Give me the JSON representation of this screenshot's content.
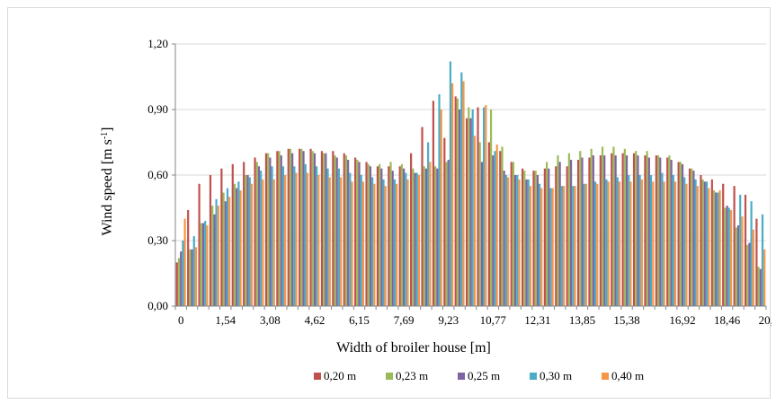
{
  "chart_data": {
    "type": "bar",
    "title": "",
    "xlabel": "Width of broiler house [m]",
    "ylabel": "Wind speed [m s",
    "ylabel_sup": "-1",
    "ylabel_close": "]",
    "ylim": [
      0,
      1.2
    ],
    "yticks": [
      "0,00",
      "0,30",
      "0,60",
      "0,90",
      "1,20"
    ],
    "ytick_values": [
      0,
      0.3,
      0.6,
      0.9,
      1.2
    ],
    "xticks": [
      "0",
      "1,54",
      "3,08",
      "4,62",
      "6,15",
      "7,69",
      "9,23",
      "10,77",
      "12,31",
      "13,85",
      "15,38",
      "16,92",
      "18,46",
      "20,00"
    ],
    "xtick_positions": [
      0,
      1.54,
      3.08,
      4.62,
      6.15,
      7.69,
      9.23,
      10.77,
      12.31,
      13.85,
      15.38,
      16.92,
      18.46,
      20.0
    ],
    "grid": "horizontal",
    "legend_position": "bottom",
    "x": [
      0,
      0.38,
      0.77,
      1.15,
      1.54,
      1.92,
      2.31,
      2.69,
      3.08,
      3.46,
      3.85,
      4.23,
      4.62,
      5.0,
      5.38,
      5.77,
      6.15,
      6.54,
      6.92,
      7.31,
      7.69,
      8.08,
      8.46,
      8.85,
      9.23,
      9.62,
      10.0,
      10.38,
      10.77,
      11.15,
      11.54,
      11.92,
      12.31,
      12.69,
      13.08,
      13.46,
      13.85,
      14.23,
      14.62,
      15.0,
      15.38,
      15.77,
      16.15,
      16.54,
      16.92,
      17.31,
      17.69,
      18.08,
      18.46,
      18.85,
      19.23,
      19.62,
      20.0
    ],
    "series": [
      {
        "name": "0,20 m",
        "color": "#c0504d",
        "values": [
          0.2,
          0.44,
          0.56,
          0.6,
          0.63,
          0.65,
          0.66,
          0.68,
          0.7,
          0.71,
          0.72,
          0.72,
          0.72,
          0.71,
          0.71,
          0.7,
          0.68,
          0.66,
          0.64,
          0.64,
          0.64,
          0.7,
          0.82,
          0.94,
          0.77,
          0.96,
          0.86,
          0.91,
          0.75,
          0.71,
          0.66,
          0.63,
          0.62,
          0.63,
          0.64,
          0.64,
          0.67,
          0.68,
          0.69,
          0.7,
          0.7,
          0.7,
          0.69,
          0.69,
          0.68,
          0.66,
          0.63,
          0.6,
          0.58,
          0.56,
          0.55,
          0.51,
          0.4
        ]
      },
      {
        "name": "0,23 m",
        "color": "#9bbb59",
        "values": [
          0.22,
          0.26,
          0.38,
          0.46,
          0.52,
          0.56,
          0.6,
          0.66,
          0.7,
          0.71,
          0.72,
          0.72,
          0.71,
          0.7,
          0.69,
          0.69,
          0.67,
          0.65,
          0.65,
          0.66,
          0.65,
          0.63,
          0.64,
          0.64,
          0.66,
          0.95,
          0.91,
          0.75,
          0.9,
          0.73,
          0.66,
          0.62,
          0.62,
          0.66,
          0.69,
          0.7,
          0.71,
          0.72,
          0.73,
          0.73,
          0.72,
          0.71,
          0.71,
          0.69,
          0.69,
          0.66,
          0.63,
          0.58,
          0.53,
          0.45,
          0.36,
          0.28,
          0.18
        ]
      },
      {
        "name": "0,25 m",
        "color": "#8064a2",
        "values": [
          0.25,
          0.26,
          0.38,
          0.42,
          0.48,
          0.54,
          0.6,
          0.64,
          0.68,
          0.69,
          0.7,
          0.71,
          0.7,
          0.7,
          0.68,
          0.67,
          0.66,
          0.64,
          0.63,
          0.62,
          0.63,
          0.61,
          0.63,
          0.63,
          0.67,
          0.9,
          0.86,
          0.66,
          0.69,
          0.62,
          0.6,
          0.58,
          0.6,
          0.63,
          0.66,
          0.67,
          0.68,
          0.69,
          0.69,
          0.69,
          0.69,
          0.69,
          0.68,
          0.68,
          0.67,
          0.65,
          0.62,
          0.57,
          0.52,
          0.46,
          0.37,
          0.29,
          0.17
        ]
      },
      {
        "name": "0,30 m",
        "color": "#4bacc6",
        "values": [
          0.3,
          0.32,
          0.39,
          0.49,
          0.54,
          0.57,
          0.59,
          0.62,
          0.64,
          0.64,
          0.64,
          0.65,
          0.64,
          0.63,
          0.63,
          0.61,
          0.6,
          0.59,
          0.58,
          0.58,
          0.61,
          0.61,
          0.75,
          0.97,
          1.12,
          1.07,
          0.9,
          0.91,
          0.71,
          0.6,
          0.6,
          0.58,
          0.56,
          0.54,
          0.55,
          0.55,
          0.56,
          0.57,
          0.58,
          0.59,
          0.6,
          0.6,
          0.6,
          0.61,
          0.6,
          0.59,
          0.58,
          0.57,
          0.52,
          0.45,
          0.51,
          0.48,
          0.42
        ]
      },
      {
        "name": "0,40 m",
        "color": "#f79646",
        "values": [
          0.4,
          0.27,
          0.37,
          0.46,
          0.5,
          0.53,
          0.56,
          0.58,
          0.58,
          0.6,
          0.61,
          0.61,
          0.6,
          0.59,
          0.59,
          0.57,
          0.57,
          0.56,
          0.55,
          0.56,
          0.58,
          0.6,
          0.66,
          0.9,
          1.02,
          1.03,
          0.78,
          0.92,
          0.74,
          0.59,
          0.58,
          0.55,
          0.54,
          0.54,
          0.55,
          0.55,
          0.56,
          0.56,
          0.57,
          0.57,
          0.57,
          0.58,
          0.57,
          0.57,
          0.57,
          0.56,
          0.55,
          0.54,
          0.53,
          0.44,
          0.41,
          0.35,
          0.26
        ]
      }
    ]
  }
}
